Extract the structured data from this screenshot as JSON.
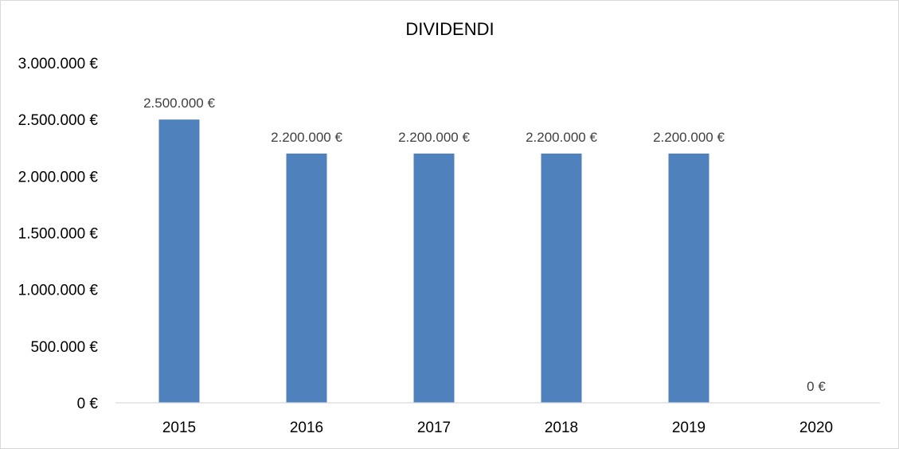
{
  "chart_data": {
    "type": "bar",
    "title": "DIVIDENDI",
    "xlabel": "",
    "ylabel": "",
    "categories": [
      "2015",
      "2016",
      "2017",
      "2018",
      "2019",
      "2020"
    ],
    "values": [
      2500000,
      2200000,
      2200000,
      2200000,
      2200000,
      0
    ],
    "data_labels": [
      "2.500.000 €",
      "2.200.000 €",
      "2.200.000 €",
      "2.200.000 €",
      "2.200.000 €",
      "0 €"
    ],
    "ylim": [
      0,
      3000000
    ],
    "yticks": [
      0,
      500000,
      1000000,
      1500000,
      2000000,
      2500000,
      3000000
    ],
    "ytick_labels": [
      "0 €",
      "500.000 €",
      "1.000.000 €",
      "1.500.000 €",
      "2.000.000 €",
      "2.500.000 €",
      "3.000.000 €"
    ],
    "grid": false,
    "legend": "none",
    "bar_color": "#4f81bd",
    "axis_color": "#d9d9d9"
  }
}
